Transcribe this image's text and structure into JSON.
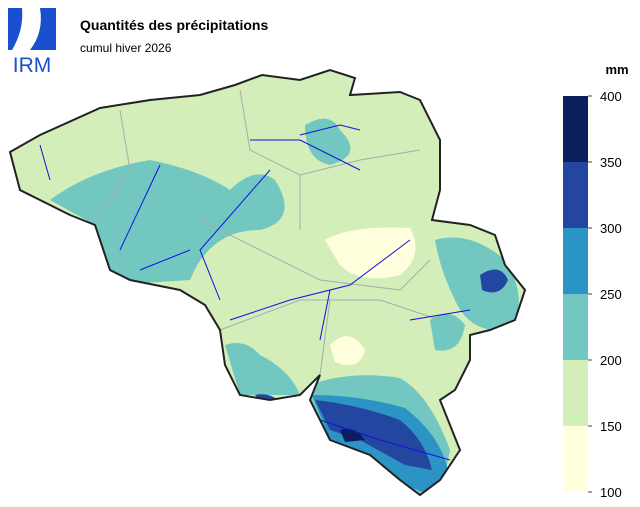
{
  "logo": "IRM",
  "title": "Quantités des précipitations",
  "subtitle": "cumul hiver 2026",
  "legend": {
    "unit": "mm",
    "ticks": [
      100,
      150,
      200,
      250,
      300,
      350,
      400
    ],
    "colors": [
      "#ffffdd",
      "#d3eeb8",
      "#72c8c0",
      "#2b94c4",
      "#2347a0",
      "#0a1f5c"
    ]
  }
}
